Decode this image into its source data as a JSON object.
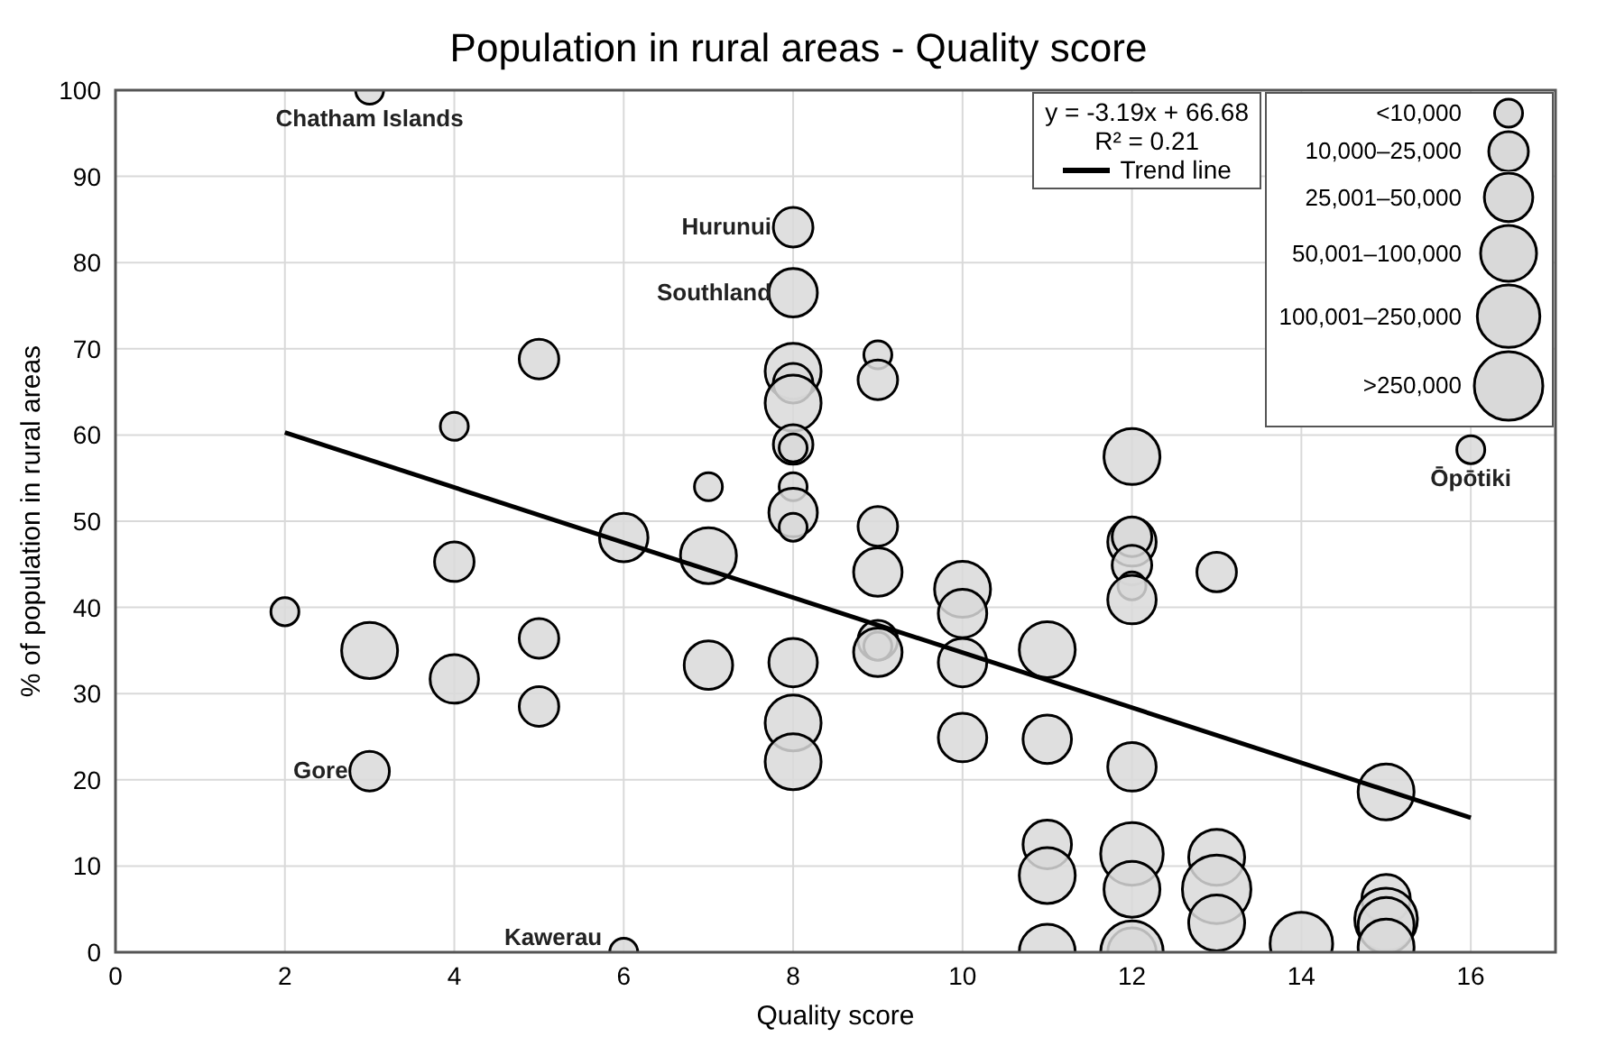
{
  "chart_data": {
    "type": "bubble",
    "title": "Population in rural areas - Quality score",
    "xlabel": "Quality score",
    "ylabel": "% of population in rural areas",
    "xlim": [
      0,
      17
    ],
    "xticks": [
      0,
      2,
      4,
      6,
      8,
      10,
      12,
      14,
      16
    ],
    "ylim": [
      0,
      100
    ],
    "yticks": [
      0,
      10,
      20,
      30,
      40,
      50,
      60,
      70,
      80,
      90,
      100
    ],
    "grid": true,
    "legend": "top right",
    "size_legend": [
      {
        "value": 1,
        "label": "<10,000"
      },
      {
        "value": 2,
        "label": "10,000–25,000"
      },
      {
        "value": 3,
        "label": "25,001–50,000"
      },
      {
        "value": 4,
        "label": "50,001–100,000"
      },
      {
        "value": 5,
        "label": "100,001–250,000"
      },
      {
        "value": 6,
        "label": ">250,000"
      }
    ],
    "series": [
      {
        "type": "bubble",
        "color": "#d9d9d9",
        "x": [
          3,
          5,
          4,
          6,
          4,
          2,
          3,
          5,
          4,
          5,
          3,
          6,
          8,
          8,
          8,
          8,
          8,
          8,
          8,
          8,
          8,
          8,
          7,
          7,
          7,
          8,
          8,
          8,
          9,
          9,
          9,
          9,
          9,
          9,
          9,
          10,
          10,
          10,
          10,
          11,
          11,
          11,
          11,
          11,
          12,
          12,
          12,
          12,
          12,
          12,
          12,
          12,
          12,
          12,
          12,
          13,
          13,
          13,
          13,
          14,
          15,
          15,
          15,
          15,
          15,
          16
        ],
        "values": [
          100,
          68.8,
          61,
          48.1,
          45.3,
          39.5,
          35,
          36.4,
          31.7,
          28.5,
          21,
          0,
          84.1,
          76.5,
          67.4,
          66,
          63.7,
          58.9,
          58.5,
          54,
          51,
          49.3,
          54,
          46,
          33.3,
          33.6,
          26.6,
          22.1,
          69.3,
          66.4,
          49.4,
          44.1,
          36.2,
          35.5,
          34.8,
          42.1,
          39.3,
          33.6,
          24.9,
          35.1,
          24.7,
          12.5,
          8.9,
          0,
          57.5,
          47.6,
          48.2,
          44.9,
          42.5,
          40.9,
          21.5,
          11.4,
          7.3,
          0,
          0,
          44.1,
          11,
          7.3,
          3.4,
          1,
          18.6,
          6.2,
          3.8,
          3.1,
          0.6,
          58.3
        ],
        "sizes": [
          1,
          2,
          1,
          3,
          2,
          1,
          4,
          2,
          3,
          2,
          2,
          1,
          2,
          3,
          4,
          2,
          4,
          2,
          1,
          1,
          3,
          1,
          1,
          4,
          3,
          3,
          4,
          4,
          1,
          2,
          2,
          3,
          2,
          1,
          3,
          4,
          3,
          3,
          3,
          4,
          3,
          3,
          4,
          4,
          4,
          3,
          2,
          2,
          1,
          3,
          3,
          5,
          4,
          3,
          5,
          2,
          4,
          6,
          4,
          5,
          4,
          3,
          5,
          4,
          4,
          1
        ]
      },
      {
        "type": "line",
        "name": "Trend line",
        "color": "#000000",
        "x": [
          2,
          16
        ],
        "values": [
          60.3,
          15.6
        ]
      }
    ],
    "annotations": [
      "y = -3.19x + 66.68",
      "R² = 0.21",
      {
        "text": "Chatham Islands",
        "x": 3,
        "y": 100
      },
      {
        "text": "Hurunui",
        "x": 8,
        "y": 84.1
      },
      {
        "text": "Southland",
        "x": 8,
        "y": 76.5
      },
      {
        "text": "Gore",
        "x": 3,
        "y": 21
      },
      {
        "text": "Kawerau",
        "x": 6,
        "y": 0
      },
      {
        "text": "Ōpōtiki",
        "x": 16,
        "y": 58.3
      }
    ]
  }
}
